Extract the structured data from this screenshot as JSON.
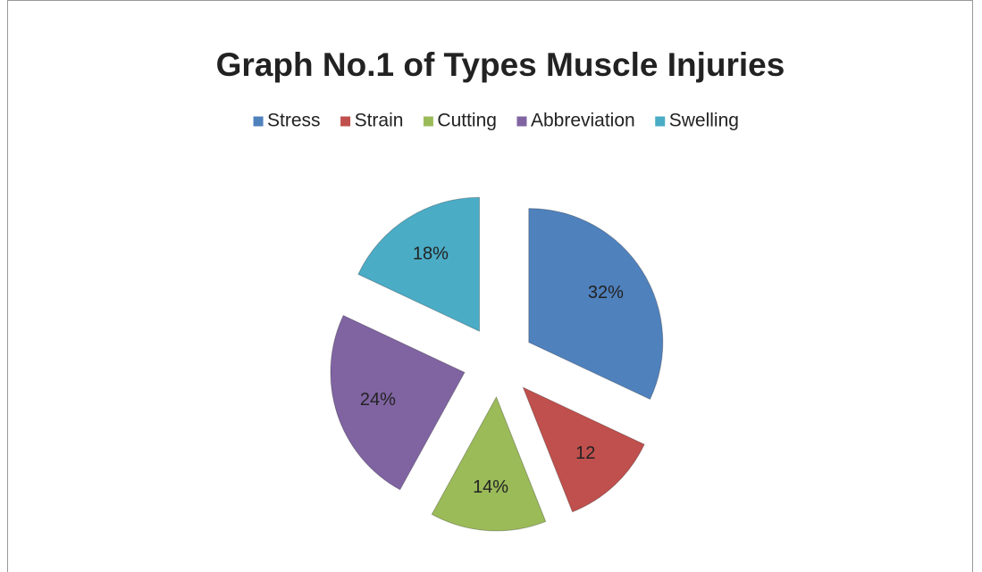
{
  "chart_data": {
    "type": "pie",
    "title": "Graph No.1 of Types Muscle Injuries",
    "categories": [
      "Stress",
      "Strain",
      "Cutting",
      "Abbreviation",
      "Swelling"
    ],
    "values": [
      32,
      12,
      14,
      24,
      18
    ],
    "value_labels": [
      "32%",
      "12",
      "14%",
      "24%",
      "18%"
    ],
    "colors": [
      "#4f81bd",
      "#c0504d",
      "#9bbb59",
      "#8064a2",
      "#4bacc6"
    ],
    "legend": "top"
  }
}
